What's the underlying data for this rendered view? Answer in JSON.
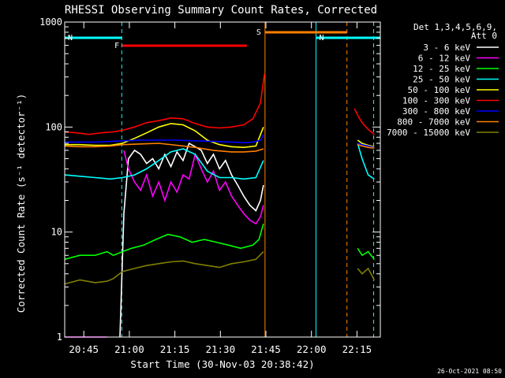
{
  "chart_data": {
    "type": "line",
    "title": "RHESSI Observing Summary Count Rates, Corrected",
    "xlabel": "Start Time (30-Nov-03 20:38:42)",
    "ylabel": "Corrected Count Rate (s⁻¹ detector⁻¹)",
    "ylog": true,
    "ylim": [
      1,
      1000
    ],
    "xlim_min": [
      0,
      104
    ],
    "y_ticks": [
      "1",
      "10",
      "100",
      "1000"
    ],
    "y_tick_values": [
      1,
      10,
      100,
      1000
    ],
    "x_ticks": [
      "20:45",
      "21:00",
      "21:15",
      "21:30",
      "21:45",
      "22:00",
      "22:15"
    ],
    "x_tick_values": [
      6.3,
      21.3,
      36.3,
      51.3,
      66.3,
      81.3,
      96.3
    ],
    "legend_header": [
      "Det 1,3,4,5,6,9,",
      "Att 0"
    ],
    "timestamp": "26-Oct-2021 08:50",
    "flags": [
      {
        "letter": "N",
        "color": "#00ffff",
        "x": [
          0,
          18.8
        ]
      },
      {
        "letter": "N",
        "color": "#00ffff",
        "x": [
          82.8,
          104
        ]
      },
      {
        "letter": "F",
        "color": "#ff0000",
        "x": [
          19,
          60
        ]
      },
      {
        "letter": "S",
        "color": "#ff8000",
        "x": [
          66,
          93
        ]
      }
    ],
    "vlines": [
      {
        "x": 18.8,
        "color": "#00ffff",
        "style": "dashed"
      },
      {
        "x": 66,
        "color": "#ff8000",
        "style": "solid"
      },
      {
        "x": 82.8,
        "color": "#00ffff",
        "style": "solid"
      },
      {
        "x": 93,
        "color": "#ff8000",
        "style": "dashed"
      },
      {
        "x": 101.8,
        "color": "#00ffff",
        "style": "dashed"
      }
    ],
    "series": [
      {
        "name": "3 - 6 keV",
        "color": "#ffffff",
        "segments": [
          {
            "x": [
              18.2,
              19.5,
              21,
              23,
              25,
              27,
              29,
              31,
              33,
              35,
              37,
              39,
              41,
              43,
              45,
              47,
              49,
              51,
              53,
              55,
              57,
              59,
              61,
              63,
              64.5,
              65.5
            ],
            "y": [
              1,
              15,
              50,
              60,
              55,
              45,
              50,
              40,
              55,
              42,
              58,
              48,
              70,
              65,
              60,
              45,
              55,
              40,
              48,
              35,
              28,
              22,
              18,
              16,
              20,
              28
            ]
          }
        ]
      },
      {
        "name": "6 - 12 keV",
        "color": "#ff00ff",
        "segments": [
          {
            "x": [
              0,
              4,
              8,
              12,
              14
            ],
            "y": [
              1,
              1,
              1,
              1,
              1
            ]
          },
          {
            "x": [
              19.5,
              21,
              23,
              25,
              27,
              29,
              31,
              33,
              35,
              37,
              39,
              41,
              43,
              45,
              47,
              49,
              51,
              53,
              55,
              57,
              59,
              61,
              63,
              64.5,
              65.5
            ],
            "y": [
              60,
              40,
              30,
              25,
              35,
              22,
              30,
              20,
              30,
              24,
              35,
              32,
              55,
              40,
              30,
              38,
              25,
              30,
              22,
              18,
              15,
              13,
              12,
              14,
              18
            ]
          }
        ]
      },
      {
        "name": "12 - 25 keV",
        "color": "#00ff00",
        "segments": [
          {
            "x": [
              0,
              5,
              10,
              14,
              16,
              19,
              22,
              26,
              30,
              34,
              38,
              42,
              46,
              50,
              54,
              58,
              62,
              64,
              65.5
            ],
            "y": [
              5.5,
              6,
              6,
              6.5,
              6,
              6.5,
              7,
              7.5,
              8.5,
              9.5,
              9,
              8,
              8.5,
              8,
              7.5,
              7,
              7.5,
              8.5,
              12
            ]
          },
          {
            "x": [
              96.5,
              98,
              100,
              102
            ],
            "y": [
              7,
              6,
              6.5,
              5.5
            ]
          }
        ]
      },
      {
        "name": "25 - 50 keV",
        "color": "#00ffff",
        "segments": [
          {
            "x": [
              0,
              5,
              10,
              15,
              19,
              23,
              27,
              31,
              35,
              39,
              43,
              47,
              51,
              55,
              59,
              63,
              65.5
            ],
            "y": [
              35,
              34,
              33,
              32,
              33,
              35,
              40,
              48,
              58,
              62,
              55,
              38,
              33,
              33,
              32,
              33,
              48
            ]
          },
          {
            "x": [
              96.5,
              98,
              100,
              102
            ],
            "y": [
              70,
              50,
              35,
              32
            ]
          }
        ]
      },
      {
        "name": "50 - 100 keV",
        "color": "#ffff00",
        "segments": [
          {
            "x": [
              0,
              5,
              10,
              15,
              19,
              23,
              27,
              31,
              35,
              39,
              43,
              47,
              51,
              55,
              59,
              63,
              65.5
            ],
            "y": [
              68,
              68,
              67,
              67,
              70,
              78,
              88,
              100,
              108,
              105,
              92,
              75,
              68,
              65,
              64,
              66,
              100
            ]
          },
          {
            "x": [
              96.5,
              98,
              100,
              102
            ],
            "y": [
              75,
              70,
              67,
              65
            ]
          }
        ]
      },
      {
        "name": "100 - 300 keV",
        "color": "#ff0000",
        "segments": [
          {
            "x": [
              0,
              4,
              8,
              12,
              16,
              19,
              23,
              27,
              31,
              35,
              39,
              43,
              47,
              51,
              55,
              59,
              62,
              64.5,
              65.8
            ],
            "y": [
              90,
              88,
              85,
              88,
              90,
              93,
              100,
              110,
              115,
              122,
              120,
              108,
              100,
              98,
              100,
              105,
              120,
              170,
              320
            ]
          },
          {
            "x": [
              95.5,
              96.5,
              98,
              100,
              102
            ],
            "y": [
              150,
              130,
              110,
              95,
              85
            ]
          }
        ]
      },
      {
        "name": "300 - 800 keV",
        "color": "#0000ff",
        "segments": [
          {
            "x": [
              0,
              5,
              10,
              15,
              19,
              25,
              31,
              37,
              43,
              49,
              55,
              59,
              62,
              64.5,
              65.5
            ],
            "y": [
              72,
              72,
              72,
              73,
              74,
              75,
              75,
              75,
              74,
              73,
              72,
              71,
              72,
              75,
              85
            ]
          },
          {
            "x": [
              96.5,
              98,
              100,
              102
            ],
            "y": [
              70,
              68,
              66,
              64
            ]
          }
        ]
      },
      {
        "name": "800 - 7000 keV",
        "color": "#ff8000",
        "segments": [
          {
            "x": [
              0,
              5,
              10,
              15,
              19,
              25,
              31,
              37,
              43,
              49,
              55,
              59,
              63,
              65.5
            ],
            "y": [
              66,
              65,
              65,
              66,
              68,
              69,
              70,
              67,
              64,
              60,
              58,
              58,
              59,
              62
            ]
          },
          {
            "x": [
              96.5,
              98,
              100,
              102
            ],
            "y": [
              68,
              66,
              64,
              63
            ]
          }
        ]
      },
      {
        "name": "7000 - 15000 keV",
        "color": "#808000",
        "segments": [
          {
            "x": [
              0,
              5,
              10,
              14,
              16,
              19,
              23,
              27,
              31,
              35,
              39,
              43,
              47,
              51,
              55,
              59,
              63,
              65.5
            ],
            "y": [
              3.2,
              3.5,
              3.3,
              3.4,
              3.6,
              4.2,
              4.5,
              4.8,
              5,
              5.2,
              5.3,
              5,
              4.8,
              4.6,
              5,
              5.2,
              5.5,
              6.5
            ]
          },
          {
            "x": [
              96.5,
              98,
              100,
              102
            ],
            "y": [
              4.5,
              4,
              4.5,
              3.5
            ]
          }
        ]
      }
    ]
  }
}
